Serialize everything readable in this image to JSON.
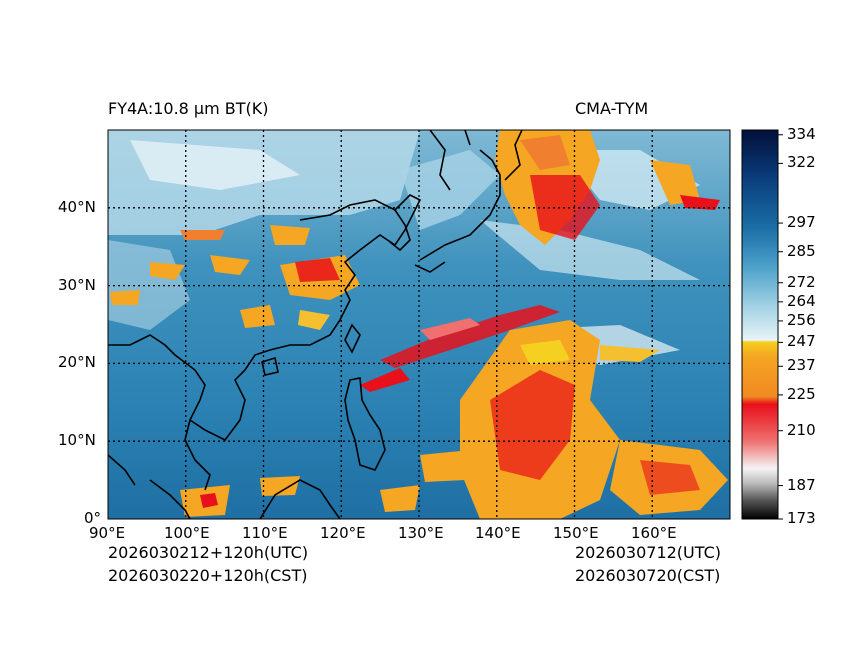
{
  "header": {
    "left_title": "FY4A:10.8 µm BT(K)",
    "right_title": "CMA-TYM"
  },
  "footer": {
    "init_utc": "2026030212+120h(UTC)",
    "init_cst": "2026030220+120h(CST)",
    "valid_utc": "2026030712(UTC)",
    "valid_cst": "2026030720(CST)"
  },
  "map": {
    "lon_labels": [
      "90°E",
      "100°E",
      "110°E",
      "120°E",
      "130°E",
      "140°E",
      "150°E",
      "160°E"
    ],
    "lat_labels": [
      "0°",
      "10°N",
      "20°N",
      "30°N",
      "40°N"
    ],
    "lon_range": [
      90,
      170
    ],
    "lat_range": [
      0,
      50
    ]
  },
  "colorbar": {
    "ticks": [
      "334",
      "322",
      "297",
      "285",
      "272",
      "264",
      "256",
      "247",
      "237",
      "225",
      "210",
      "187",
      "173"
    ],
    "tick_values": [
      334,
      322,
      297,
      285,
      272,
      264,
      256,
      247,
      237,
      225,
      210,
      187,
      173
    ],
    "range": [
      173,
      336
    ],
    "colors": {
      "cold_black": "#111111",
      "gray": "#9a9a9a",
      "white_band": "#f6f6f6",
      "red": "#e8101a",
      "orange": "#f5a623",
      "yellow": "#f5d020",
      "light_blue": "#9fd0e4",
      "mid_blue": "#2a8ab8",
      "dark_blue": "#0a3c7a",
      "navy": "#03103a"
    }
  }
}
